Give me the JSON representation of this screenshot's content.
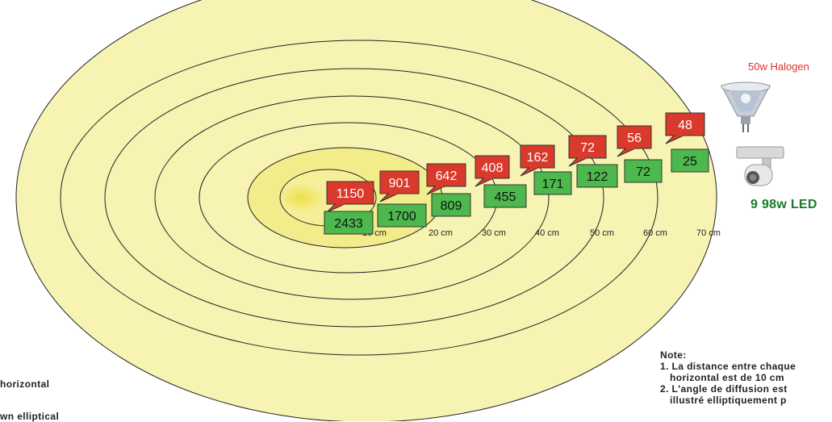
{
  "halogen_label": "50w Halogen",
  "led_label": "9 98w LED",
  "colors": {
    "red": "#d93a2b",
    "green": "#4db84d",
    "ring_fill": "#f7f3b3",
    "center_fill": "#eee24a"
  },
  "distances": [
    "10 cm",
    "20 cm",
    "30 cm",
    "40 cm",
    "50 cm",
    "60 cm",
    "70 cm"
  ],
  "halogen_values": [
    "1150",
    "901",
    "642",
    "408",
    "162",
    "72",
    "56",
    "48"
  ],
  "led_values": [
    "2433",
    "1700",
    "809",
    "455",
    "171",
    "122",
    "72",
    "25"
  ],
  "note": {
    "title": "Note:",
    "line1": "1. La distance entre chaque",
    "line1b": "horizontal est de 10 cm",
    "line2": "2. L'angle de diffusion est",
    "line2b": "illustré elliptiquement p"
  },
  "left_note": {
    "line1": "horizontal",
    "line2": "wn elliptical"
  }
}
